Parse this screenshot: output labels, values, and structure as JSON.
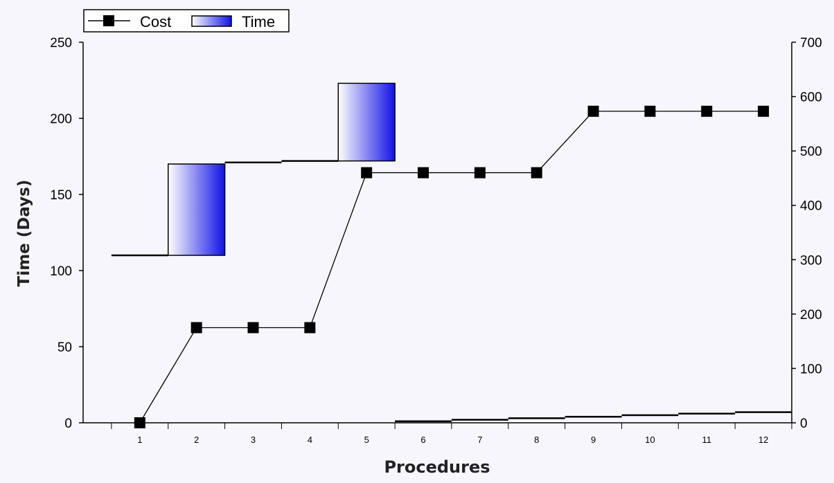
{
  "chart_data": {
    "type": "waterfall+line",
    "xlabel": "Procedures",
    "ylabel": "Time (Days)",
    "y2label": "",
    "categories": [
      "1",
      "2",
      "3",
      "4",
      "5",
      "6",
      "7",
      "8",
      "9",
      "10",
      "11",
      "12"
    ],
    "ylim": [
      0,
      250
    ],
    "yticks": [
      0,
      50,
      100,
      150,
      200,
      250
    ],
    "y2lim": [
      0,
      700
    ],
    "y2ticks": [
      0,
      100,
      200,
      300,
      400,
      500,
      600,
      700
    ],
    "legend": {
      "placement": "top-left",
      "entries": [
        "Cost",
        "Time"
      ]
    },
    "series": [
      {
        "name": "Time",
        "axis": "left",
        "style": "waterfall",
        "color": "#1a1aee",
        "segments": [
          {
            "category": "1",
            "start": 110,
            "end": 110
          },
          {
            "category": "2",
            "start": 110,
            "end": 170
          },
          {
            "category": "3",
            "start": 170,
            "end": 171
          },
          {
            "category": "4",
            "start": 171,
            "end": 172
          },
          {
            "category": "5",
            "start": 172,
            "end": 223
          },
          {
            "category": "6",
            "start": 0,
            "end": 1
          },
          {
            "category": "7",
            "start": 1,
            "end": 2
          },
          {
            "category": "8",
            "start": 2,
            "end": 3
          },
          {
            "category": "9",
            "start": 3,
            "end": 4
          },
          {
            "category": "10",
            "start": 4,
            "end": 5
          },
          {
            "category": "11",
            "start": 5,
            "end": 6
          },
          {
            "category": "12",
            "start": 6,
            "end": 7
          }
        ]
      },
      {
        "name": "Cost",
        "axis": "right",
        "style": "line-square-markers",
        "color": "#000000",
        "values": [
          0,
          175,
          175,
          175,
          460,
          460,
          460,
          460,
          573,
          573,
          573,
          573
        ]
      }
    ]
  }
}
